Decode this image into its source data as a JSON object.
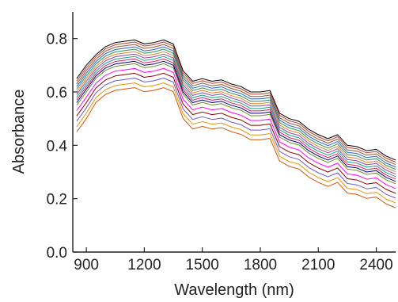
{
  "chart_data": {
    "type": "line",
    "title": "",
    "xlabel": "Wavelength (nm)",
    "ylabel": "Absorbance",
    "xlim": [
      830,
      2500
    ],
    "ylim": [
      0.0,
      0.9
    ],
    "x_ticks": [
      900,
      1200,
      1500,
      1800,
      2100,
      2400
    ],
    "y_ticks": [
      0.0,
      0.2,
      0.4,
      0.6,
      0.8
    ],
    "x_tick_labels": [
      "900",
      "1200",
      "1500",
      "1800",
      "2100",
      "2400"
    ],
    "y_tick_labels": [
      "0.0",
      "0.2",
      "0.4",
      "0.6",
      "0.8"
    ],
    "grid": false,
    "legend": "none",
    "x": [
      850,
      900,
      950,
      1000,
      1050,
      1100,
      1150,
      1200,
      1250,
      1300,
      1350,
      1400,
      1450,
      1500,
      1550,
      1600,
      1650,
      1700,
      1750,
      1800,
      1850,
      1900,
      1950,
      2000,
      2050,
      2100,
      2150,
      2200,
      2250,
      2300,
      2350,
      2400,
      2450,
      2500
    ],
    "series": [
      {
        "color": "#000000",
        "values": [
          0.65,
          0.7,
          0.74,
          0.77,
          0.785,
          0.79,
          0.795,
          0.78,
          0.785,
          0.795,
          0.78,
          0.68,
          0.64,
          0.65,
          0.64,
          0.645,
          0.63,
          0.62,
          0.6,
          0.6,
          0.605,
          0.52,
          0.5,
          0.49,
          0.46,
          0.44,
          0.425,
          0.44,
          0.4,
          0.395,
          0.38,
          0.385,
          0.36,
          0.345
        ]
      },
      {
        "color": "#c0392b",
        "values": [
          0.64,
          0.69,
          0.732,
          0.762,
          0.777,
          0.782,
          0.787,
          0.772,
          0.777,
          0.787,
          0.772,
          0.672,
          0.632,
          0.642,
          0.632,
          0.637,
          0.622,
          0.612,
          0.592,
          0.592,
          0.597,
          0.512,
          0.492,
          0.482,
          0.452,
          0.432,
          0.417,
          0.432,
          0.392,
          0.387,
          0.372,
          0.377,
          0.352,
          0.337
        ]
      },
      {
        "color": "#8b5a2b",
        "values": [
          0.63,
          0.68,
          0.723,
          0.753,
          0.768,
          0.773,
          0.778,
          0.763,
          0.768,
          0.778,
          0.763,
          0.663,
          0.623,
          0.633,
          0.623,
          0.628,
          0.613,
          0.603,
          0.583,
          0.583,
          0.588,
          0.503,
          0.483,
          0.473,
          0.443,
          0.423,
          0.408,
          0.423,
          0.383,
          0.378,
          0.363,
          0.368,
          0.343,
          0.328
        ]
      },
      {
        "color": "#1f5fd1",
        "values": [
          0.62,
          0.67,
          0.714,
          0.744,
          0.759,
          0.764,
          0.769,
          0.754,
          0.759,
          0.769,
          0.754,
          0.654,
          0.614,
          0.624,
          0.614,
          0.619,
          0.604,
          0.594,
          0.574,
          0.574,
          0.579,
          0.494,
          0.474,
          0.464,
          0.434,
          0.414,
          0.399,
          0.414,
          0.374,
          0.369,
          0.354,
          0.359,
          0.334,
          0.319
        ]
      },
      {
        "color": "#2e8b57",
        "values": [
          0.61,
          0.66,
          0.705,
          0.735,
          0.75,
          0.755,
          0.76,
          0.745,
          0.75,
          0.76,
          0.745,
          0.645,
          0.605,
          0.615,
          0.605,
          0.61,
          0.595,
          0.585,
          0.565,
          0.565,
          0.57,
          0.485,
          0.465,
          0.455,
          0.425,
          0.405,
          0.39,
          0.405,
          0.365,
          0.36,
          0.345,
          0.35,
          0.325,
          0.31
        ]
      },
      {
        "color": "#e67e22",
        "values": [
          0.6,
          0.65,
          0.696,
          0.726,
          0.741,
          0.746,
          0.751,
          0.736,
          0.741,
          0.751,
          0.736,
          0.636,
          0.596,
          0.606,
          0.596,
          0.601,
          0.586,
          0.576,
          0.556,
          0.556,
          0.561,
          0.476,
          0.456,
          0.446,
          0.416,
          0.396,
          0.381,
          0.396,
          0.356,
          0.351,
          0.336,
          0.341,
          0.316,
          0.301
        ]
      },
      {
        "color": "#8e44ad",
        "values": [
          0.59,
          0.64,
          0.687,
          0.717,
          0.732,
          0.737,
          0.742,
          0.727,
          0.732,
          0.742,
          0.727,
          0.627,
          0.587,
          0.597,
          0.587,
          0.592,
          0.577,
          0.567,
          0.547,
          0.547,
          0.552,
          0.467,
          0.447,
          0.437,
          0.407,
          0.387,
          0.372,
          0.387,
          0.347,
          0.342,
          0.327,
          0.332,
          0.307,
          0.292
        ]
      },
      {
        "color": "#16a085",
        "values": [
          0.58,
          0.63,
          0.678,
          0.708,
          0.723,
          0.728,
          0.733,
          0.718,
          0.723,
          0.733,
          0.718,
          0.618,
          0.578,
          0.588,
          0.578,
          0.583,
          0.568,
          0.558,
          0.538,
          0.538,
          0.543,
          0.458,
          0.438,
          0.428,
          0.398,
          0.378,
          0.363,
          0.378,
          0.338,
          0.333,
          0.318,
          0.323,
          0.298,
          0.283
        ]
      },
      {
        "color": "#d81b60",
        "values": [
          0.57,
          0.62,
          0.669,
          0.699,
          0.714,
          0.719,
          0.724,
          0.709,
          0.714,
          0.724,
          0.709,
          0.609,
          0.569,
          0.579,
          0.569,
          0.574,
          0.559,
          0.549,
          0.529,
          0.529,
          0.534,
          0.449,
          0.429,
          0.419,
          0.389,
          0.369,
          0.354,
          0.369,
          0.329,
          0.324,
          0.309,
          0.314,
          0.289,
          0.274
        ]
      },
      {
        "color": "#000080",
        "values": [
          0.56,
          0.61,
          0.66,
          0.69,
          0.705,
          0.71,
          0.715,
          0.7,
          0.705,
          0.715,
          0.7,
          0.6,
          0.56,
          0.57,
          0.56,
          0.565,
          0.55,
          0.54,
          0.52,
          0.52,
          0.525,
          0.44,
          0.42,
          0.41,
          0.38,
          0.36,
          0.345,
          0.36,
          0.32,
          0.315,
          0.3,
          0.305,
          0.28,
          0.265
        ]
      },
      {
        "color": "#6b8e23",
        "values": [
          0.55,
          0.6,
          0.651,
          0.681,
          0.696,
          0.701,
          0.706,
          0.691,
          0.696,
          0.706,
          0.691,
          0.591,
          0.551,
          0.561,
          0.551,
          0.556,
          0.541,
          0.531,
          0.511,
          0.511,
          0.516,
          0.431,
          0.411,
          0.401,
          0.371,
          0.351,
          0.336,
          0.351,
          0.311,
          0.306,
          0.291,
          0.296,
          0.271,
          0.256
        ]
      },
      {
        "color": "#ff00ff",
        "values": [
          0.53,
          0.58,
          0.633,
          0.663,
          0.678,
          0.683,
          0.688,
          0.673,
          0.678,
          0.688,
          0.673,
          0.573,
          0.533,
          0.543,
          0.533,
          0.538,
          0.523,
          0.513,
          0.493,
          0.493,
          0.498,
          0.413,
          0.393,
          0.383,
          0.353,
          0.333,
          0.318,
          0.333,
          0.293,
          0.288,
          0.273,
          0.278,
          0.253,
          0.238
        ]
      },
      {
        "color": "#8b0000",
        "values": [
          0.51,
          0.56,
          0.615,
          0.645,
          0.66,
          0.665,
          0.67,
          0.655,
          0.66,
          0.67,
          0.655,
          0.555,
          0.515,
          0.525,
          0.515,
          0.52,
          0.505,
          0.495,
          0.475,
          0.475,
          0.48,
          0.395,
          0.375,
          0.365,
          0.335,
          0.315,
          0.3,
          0.315,
          0.275,
          0.27,
          0.255,
          0.26,
          0.235,
          0.22
        ]
      },
      {
        "color": "#6a5acd",
        "values": [
          0.49,
          0.54,
          0.597,
          0.627,
          0.642,
          0.647,
          0.652,
          0.637,
          0.642,
          0.652,
          0.637,
          0.537,
          0.497,
          0.507,
          0.497,
          0.502,
          0.487,
          0.477,
          0.457,
          0.457,
          0.462,
          0.377,
          0.357,
          0.347,
          0.317,
          0.297,
          0.282,
          0.297,
          0.257,
          0.252,
          0.237,
          0.242,
          0.217,
          0.202
        ]
      },
      {
        "color": "#e69500",
        "values": [
          0.47,
          0.52,
          0.579,
          0.609,
          0.624,
          0.629,
          0.634,
          0.619,
          0.624,
          0.634,
          0.619,
          0.519,
          0.479,
          0.489,
          0.479,
          0.484,
          0.469,
          0.459,
          0.439,
          0.439,
          0.444,
          0.359,
          0.339,
          0.329,
          0.299,
          0.279,
          0.264,
          0.279,
          0.239,
          0.234,
          0.219,
          0.224,
          0.199,
          0.184
        ]
      },
      {
        "color": "#d35400",
        "values": [
          0.45,
          0.5,
          0.561,
          0.591,
          0.606,
          0.611,
          0.616,
          0.601,
          0.606,
          0.616,
          0.601,
          0.501,
          0.461,
          0.471,
          0.461,
          0.466,
          0.451,
          0.441,
          0.421,
          0.421,
          0.426,
          0.341,
          0.321,
          0.311,
          0.281,
          0.261,
          0.246,
          0.261,
          0.221,
          0.216,
          0.201,
          0.206,
          0.181,
          0.166
        ]
      }
    ]
  }
}
